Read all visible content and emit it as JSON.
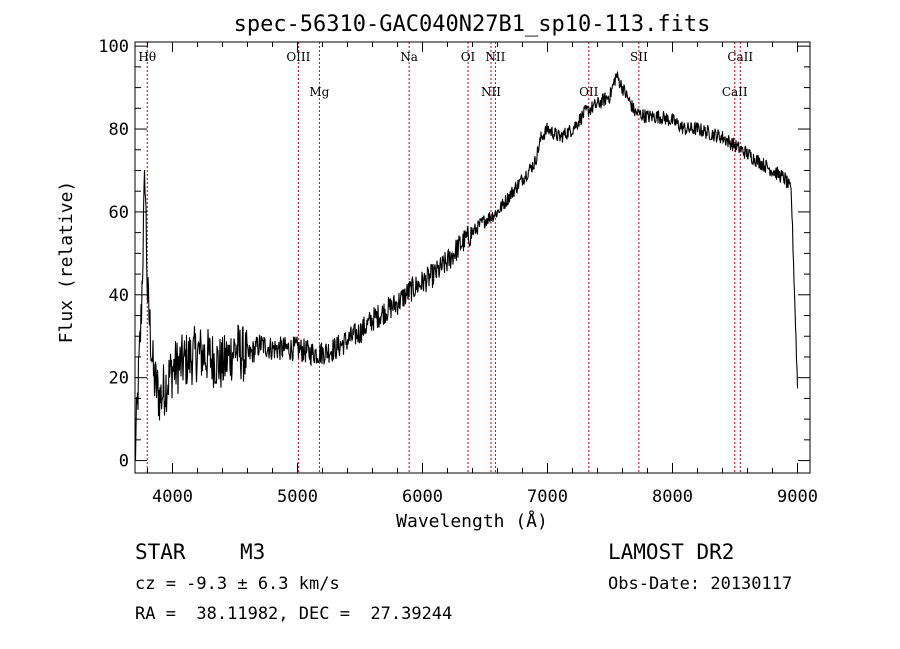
{
  "chart_data": {
    "type": "line",
    "title": "spec-56310-GAC040N27B1_sp10-113.fits",
    "xlabel": "Wavelength (Å)",
    "ylabel": "Flux (relative)",
    "xlim": [
      3700,
      9100
    ],
    "ylim": [
      -3,
      101
    ],
    "xticks": [
      4000,
      5000,
      6000,
      7000,
      8000,
      9000
    ],
    "yticks": [
      0,
      20,
      40,
      60,
      80,
      100
    ],
    "grid": false,
    "line_color": "#000000",
    "marker_color": "#cc0000",
    "series": [
      {
        "x": [
          3700,
          3750,
          3780,
          3800,
          3850,
          3900,
          4000,
          4100,
          4200,
          4300,
          4400,
          4500,
          4600,
          4700,
          4800,
          4900,
          5000,
          5100,
          5200,
          5300,
          5400,
          5500,
          5600,
          5700,
          5800,
          5900,
          6000,
          6100,
          6200,
          6300,
          6400,
          6500,
          6600,
          6700,
          6800,
          6900,
          6950,
          7000,
          7100,
          7200,
          7300,
          7400,
          7500,
          7550,
          7600,
          7700,
          7800,
          7900,
          8000,
          8100,
          8200,
          8300,
          8400,
          8500,
          8600,
          8700,
          8800,
          8900,
          8950,
          9000
        ],
        "y": [
          0,
          35,
          70,
          40,
          20,
          15,
          22,
          24,
          26,
          25,
          23,
          27,
          25,
          28,
          27,
          27,
          27,
          26,
          26,
          27,
          29,
          31,
          34,
          36,
          38,
          41,
          43,
          45,
          48,
          52,
          55,
          58,
          60,
          64,
          68,
          72,
          78,
          80,
          78,
          80,
          84,
          86,
          88,
          93,
          90,
          84,
          83,
          83,
          82,
          80,
          80,
          79,
          78,
          76,
          74,
          72,
          70,
          68,
          65,
          18
        ]
      }
    ],
    "annotations": [
      {
        "label": "Hθ",
        "x": 3798,
        "row": 0
      },
      {
        "label": "OIII",
        "x": 5007,
        "row": 0
      },
      {
        "label": "Mg",
        "x": 5175,
        "row": 1
      },
      {
        "label": "Na",
        "x": 5893,
        "row": 0
      },
      {
        "label": "OI",
        "x": 6364,
        "row": 0
      },
      {
        "label": "NII",
        "x": 6548,
        "row": 1
      },
      {
        "label": "NII",
        "x": 6583,
        "row": 0
      },
      {
        "label": "OII",
        "x": 7330,
        "row": 1
      },
      {
        "label": "SII",
        "x": 7731,
        "row": 0
      },
      {
        "label": "CaII",
        "x": 8498,
        "row": 1
      },
      {
        "label": "CaII",
        "x": 8542,
        "row": 0
      }
    ]
  },
  "info": {
    "object_type": "STAR",
    "subclass": "M3",
    "survey": "LAMOST DR2",
    "cz_line": "cz = -9.3 ± 6.3 km/s",
    "obs_date_line": "Obs-Date: 20130117",
    "radec_line": "RA =  38.11982, DEC =  27.39244"
  }
}
